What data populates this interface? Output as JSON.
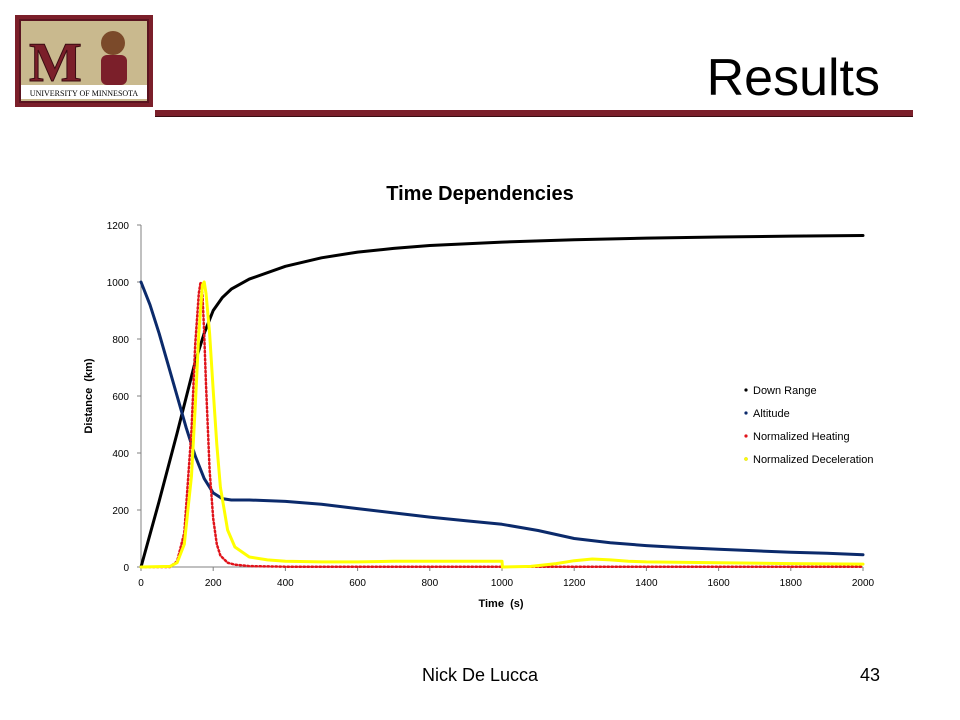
{
  "slide": {
    "title": "Results",
    "author": "Nick De Lucca",
    "page_number": "43"
  },
  "logo": {
    "text": "UNIVERSITY OF MINNESOTA",
    "letter": "M"
  },
  "colors": {
    "brand_maroon": "#7b1f2a",
    "down_range": "#000000",
    "altitude": "#0b2a6b",
    "normalized_heating": "#e0141b",
    "normalized_deceleration": "#ffff00"
  },
  "chart_data": {
    "type": "line",
    "title": "Time Dependencies",
    "xlabel": "Time  (s)",
    "ylabel": "Distance  (km)",
    "xlim": [
      0,
      2000
    ],
    "ylim": [
      0,
      1200
    ],
    "xticks": [
      0,
      200,
      400,
      600,
      800,
      1000,
      1200,
      1400,
      1600,
      1800,
      2000
    ],
    "yticks": [
      0,
      200,
      400,
      600,
      800,
      1000,
      1200
    ],
    "grid": false,
    "legend_position": "right",
    "series": [
      {
        "name": "Down Range",
        "color": "#000000",
        "x": [
          0,
          50,
          100,
          150,
          175,
          200,
          225,
          250,
          300,
          400,
          500,
          600,
          700,
          800,
          1000,
          1200,
          1400,
          1600,
          1800,
          2000
        ],
        "y": [
          0,
          230,
          470,
          720,
          820,
          900,
          945,
          975,
          1010,
          1055,
          1085,
          1105,
          1118,
          1128,
          1140,
          1148,
          1154,
          1158,
          1161,
          1163
        ]
      },
      {
        "name": "Altitude",
        "color": "#0b2a6b",
        "x": [
          0,
          25,
          50,
          75,
          100,
          125,
          150,
          175,
          200,
          225,
          250,
          300,
          400,
          500,
          600,
          700,
          800,
          900,
          1000,
          1100,
          1200,
          1300,
          1400,
          1500,
          1600,
          1700,
          1800,
          1900,
          2000
        ],
        "y": [
          1000,
          920,
          820,
          710,
          600,
          490,
          390,
          310,
          260,
          240,
          235,
          235,
          230,
          220,
          205,
          190,
          175,
          162,
          150,
          128,
          100,
          85,
          75,
          68,
          62,
          57,
          52,
          48,
          43
        ]
      },
      {
        "name": "Normalized Heating",
        "color": "#e0141b",
        "x": [
          0,
          80,
          100,
          120,
          140,
          150,
          160,
          165,
          170,
          175,
          180,
          190,
          200,
          210,
          220,
          240,
          260,
          300,
          400,
          600,
          1000,
          1400,
          2000
        ],
        "y": [
          0,
          0,
          20,
          120,
          480,
          780,
          960,
          1000,
          960,
          820,
          640,
          340,
          170,
          80,
          40,
          15,
          8,
          3,
          1,
          1,
          1,
          1,
          1
        ]
      },
      {
        "name": "Normalized Deceleration",
        "color": "#ffff00",
        "x": [
          0,
          80,
          100,
          120,
          140,
          150,
          160,
          170,
          175,
          180,
          190,
          200,
          210,
          220,
          240,
          260,
          300,
          350,
          400,
          500,
          600,
          700,
          800,
          1000,
          1001,
          1080,
          1150,
          1200,
          1250,
          1300,
          1350,
          1400,
          1600,
          1800,
          2000
        ],
        "y": [
          0,
          2,
          15,
          80,
          320,
          560,
          820,
          990,
          1000,
          960,
          820,
          620,
          430,
          280,
          130,
          70,
          35,
          25,
          20,
          18,
          18,
          20,
          20,
          20,
          0,
          2,
          12,
          22,
          28,
          25,
          20,
          18,
          15,
          12,
          10
        ]
      }
    ]
  }
}
